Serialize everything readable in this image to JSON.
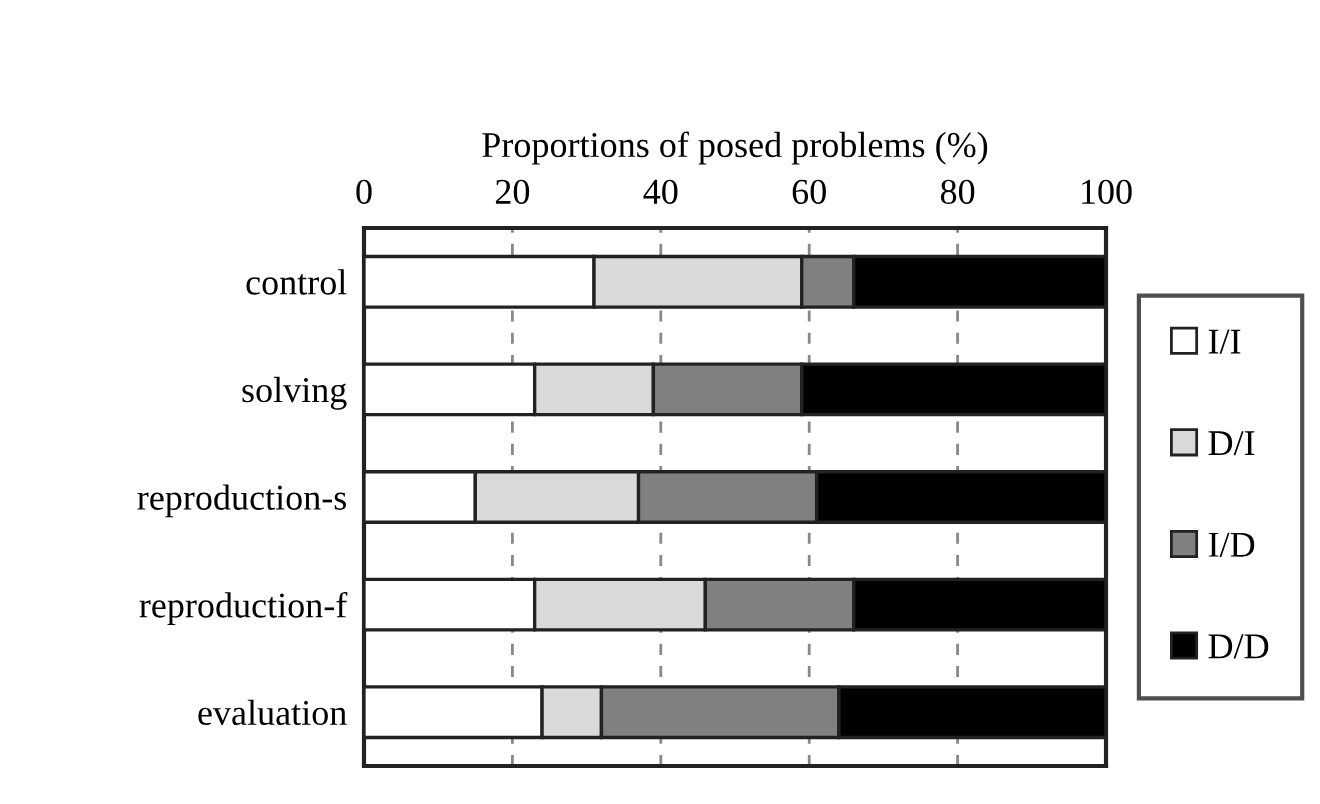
{
  "chart_data": {
    "type": "bar",
    "orientation": "horizontal",
    "stacked": true,
    "title": "Proportions of posed problems (%)",
    "categories": [
      "control",
      "solving",
      "reproduction-s",
      "reproduction-f",
      "evaluation"
    ],
    "series": [
      {
        "name": "I/I",
        "color": "#ffffff",
        "values": [
          31,
          23,
          15,
          23,
          24
        ]
      },
      {
        "name": "D/I",
        "color": "#d9d9d9",
        "values": [
          28,
          16,
          22,
          23,
          8
        ]
      },
      {
        "name": "I/D",
        "color": "#808080",
        "values": [
          7,
          20,
          24,
          20,
          32
        ]
      },
      {
        "name": "D/D",
        "color": "#000000",
        "values": [
          34,
          41,
          39,
          34,
          36
        ]
      }
    ],
    "xlim": [
      0,
      100
    ],
    "xticks": [
      0,
      20,
      40,
      60,
      80,
      100
    ],
    "grid": "x",
    "legend": "right"
  }
}
